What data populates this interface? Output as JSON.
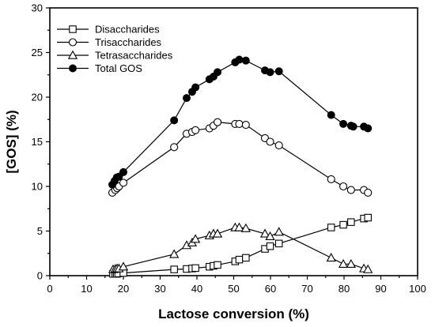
{
  "chart_data": {
    "type": "line",
    "title": "",
    "xlabel": "Lactose conversion (%)",
    "ylabel": "[GOS] (%)",
    "xlim": [
      0,
      100
    ],
    "ylim": [
      0,
      30
    ],
    "xticks": [
      "0",
      "10",
      "20",
      "30",
      "40",
      "50",
      "60",
      "70",
      "80",
      "90",
      "100"
    ],
    "yticks": [
      "0",
      "5",
      "10",
      "15",
      "20",
      "25",
      "30"
    ],
    "legend_position": "top-left",
    "grid": false,
    "series": [
      {
        "name": "Disaccharides",
        "marker": "square-open",
        "x": [
          17.2,
          17.8,
          18.2,
          18.6,
          20.0,
          33.8,
          37.2,
          38.7,
          39.6,
          43.4,
          44.5,
          45.6,
          50.4,
          51.5,
          53.3,
          58.5,
          59.9,
          62.3,
          76.5,
          79.8,
          81.9,
          85.4,
          86.5
        ],
        "y": [
          0.2,
          0.2,
          0.2,
          0.25,
          0.3,
          0.7,
          0.75,
          0.8,
          0.85,
          1.0,
          1.1,
          1.2,
          1.6,
          1.8,
          2.0,
          3.0,
          3.3,
          3.6,
          5.4,
          5.7,
          6.0,
          6.4,
          6.5
        ]
      },
      {
        "name": "Trisaccharides",
        "marker": "circle-open",
        "x": [
          17.0,
          17.8,
          18.3,
          18.8,
          20.0,
          33.8,
          37.2,
          38.7,
          39.6,
          43.4,
          44.5,
          45.6,
          50.4,
          51.5,
          53.3,
          58.5,
          59.9,
          62.3,
          76.5,
          79.8,
          81.9,
          85.4,
          86.5
        ],
        "y": [
          9.3,
          9.6,
          9.8,
          10.0,
          10.4,
          14.4,
          15.9,
          16.1,
          16.3,
          16.5,
          16.8,
          17.2,
          17.0,
          17.0,
          16.9,
          15.4,
          15.0,
          14.6,
          10.8,
          10.0,
          9.6,
          9.6,
          9.3
        ]
      },
      {
        "name": "Tetrasaccharides",
        "marker": "triangle-open",
        "x": [
          17.2,
          17.8,
          18.3,
          18.8,
          20.0,
          33.8,
          37.2,
          38.7,
          39.6,
          43.4,
          44.5,
          45.6,
          50.4,
          51.5,
          53.3,
          58.5,
          59.9,
          62.3,
          76.5,
          79.8,
          81.9,
          85.4,
          86.5
        ],
        "y": [
          0.7,
          0.75,
          0.8,
          0.8,
          1.0,
          2.4,
          3.4,
          3.7,
          4.1,
          4.5,
          4.7,
          4.7,
          5.4,
          5.4,
          5.3,
          4.7,
          4.4,
          4.9,
          2.0,
          1.3,
          1.3,
          0.8,
          0.7
        ]
      },
      {
        "name": "Total GOS",
        "marker": "circle-filled",
        "x": [
          17.0,
          17.6,
          18.2,
          18.8,
          20.0,
          33.8,
          37.2,
          38.7,
          39.6,
          43.4,
          44.5,
          45.6,
          50.4,
          51.5,
          53.3,
          58.5,
          59.9,
          62.3,
          76.5,
          79.8,
          81.9,
          82.5,
          85.4,
          86.5
        ],
        "y": [
          10.2,
          10.6,
          11.0,
          11.1,
          11.6,
          17.4,
          19.9,
          20.6,
          21.1,
          22.0,
          22.3,
          22.8,
          23.9,
          24.2,
          24.1,
          23.0,
          22.8,
          22.9,
          18.0,
          17.0,
          16.8,
          16.7,
          16.7,
          16.5
        ]
      }
    ]
  }
}
